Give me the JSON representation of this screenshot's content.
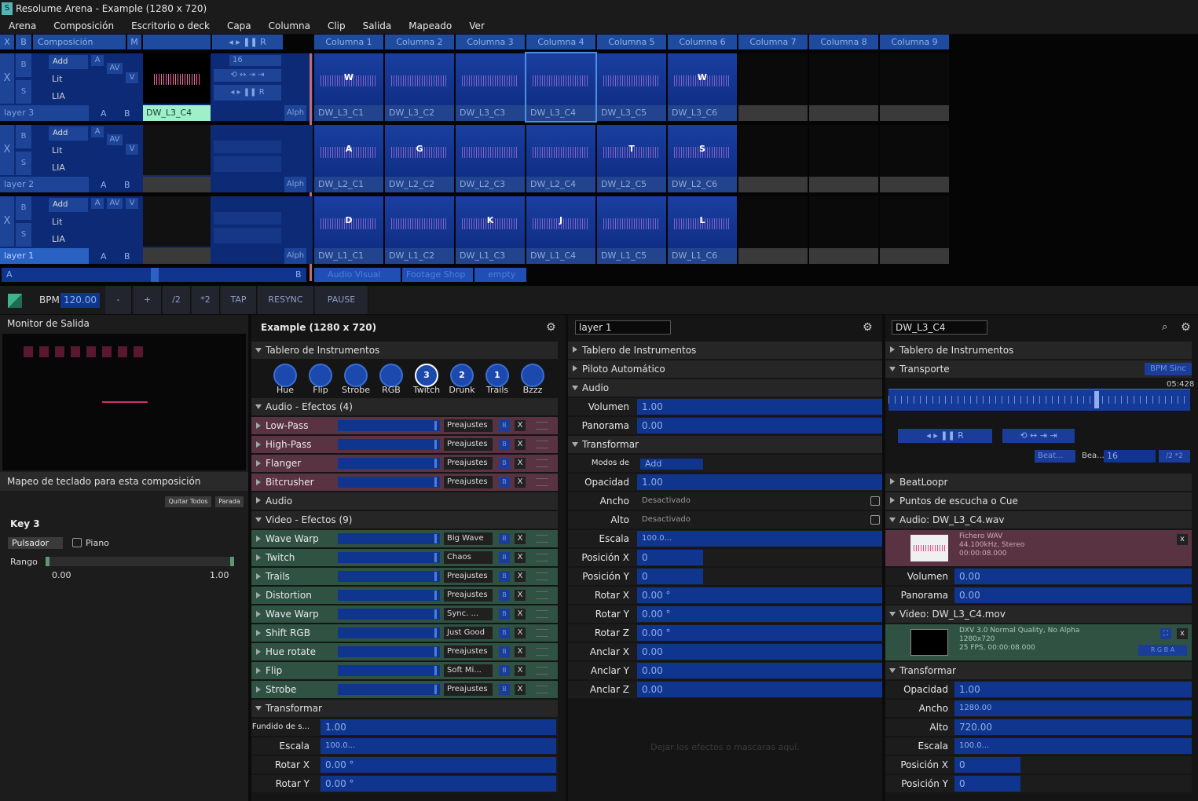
{
  "window_title": "Resolume Arena - Example (1280 x 720)",
  "menu": [
    "Arena",
    "Composición",
    "Escritorio o deck",
    "Capa",
    "Columna",
    "Clip",
    "Salida",
    "Mapeado",
    "Ver"
  ],
  "deck_header": {
    "x": "X",
    "b": "B",
    "composition": "Composición",
    "m": "M"
  },
  "columns": [
    "Columna 1",
    "Columna 2",
    "Columna 3",
    "Columna 4",
    "Columna 5",
    "Columna 6",
    "Columna 7",
    "Columna 8",
    "Columna 9"
  ],
  "layers": [
    {
      "name": "layer 3",
      "blend": "Add",
      "opt1": "Lit",
      "opt2": "LIA",
      "active_clip": "DW_L3_C4",
      "speed": "16",
      "clips": [
        "DW_L3_C1",
        "DW_L3_C2",
        "DW_L3_C3",
        "DW_L3_C4",
        "DW_L3_C5",
        "DW_L3_C6"
      ],
      "letters": [
        "W",
        "",
        "",
        "",
        "",
        "W"
      ]
    },
    {
      "name": "layer 2",
      "blend": "Add",
      "opt1": "Lit",
      "opt2": "LIA",
      "active_clip": "",
      "speed": "",
      "clips": [
        "DW_L2_C1",
        "DW_L2_C2",
        "DW_L2_C3",
        "DW_L2_C4",
        "DW_L2_C5",
        "DW_L2_C6"
      ],
      "letters": [
        "A",
        "G",
        "",
        "",
        "T",
        "S"
      ]
    },
    {
      "name": "layer 1",
      "blend": "Add",
      "opt1": "Lit",
      "opt2": "LIA",
      "active_clip": "",
      "speed": "",
      "clips": [
        "DW_L1_C1",
        "DW_L1_C2",
        "DW_L1_C3",
        "DW_L1_C4",
        "DW_L1_C5",
        "DW_L1_C6"
      ],
      "letters": [
        "D",
        "",
        "K",
        "J",
        "",
        "L"
      ]
    }
  ],
  "layer_labels": {
    "a": "A",
    "b": "B",
    "alph": "Alph",
    "av": "AV",
    "v": "V",
    "t": "T"
  },
  "crossfader": {
    "a": "A",
    "b": "B"
  },
  "deck_tabs": [
    "Audio Visual",
    "Footage Shop",
    "empty"
  ],
  "bpm": {
    "label": "BPM",
    "value": "120.00",
    "buttons": [
      "-",
      "+",
      "/2",
      "*2",
      "TAP",
      "RESYNC",
      "PAUSE"
    ]
  },
  "monitor": {
    "title": "Monitor de Salida",
    "keyboard_title": "Mapeo de teclado para esta composición",
    "clear_all": "Quitar Todos",
    "stop": "Parada",
    "key": "Key 3",
    "mode": "Pulsador",
    "piano": "Piano",
    "range_label": "Rango",
    "range_min": "0.00",
    "range_max": "1.00"
  },
  "composition": {
    "title": "Example (1280 x 720)",
    "dashboard": "Tablero de Instrumentos",
    "knobs": [
      {
        "label": "Hue",
        "num": ""
      },
      {
        "label": "Flip",
        "num": ""
      },
      {
        "label": "Strobe",
        "num": ""
      },
      {
        "label": "RGB",
        "num": ""
      },
      {
        "label": "Twitch",
        "num": "3"
      },
      {
        "label": "Drunk",
        "num": "2"
      },
      {
        "label": "Trails",
        "num": "1"
      },
      {
        "label": "Bzzz",
        "num": ""
      }
    ],
    "audio_fx_header": "Audio - Efectos (4)",
    "audio_fx": [
      {
        "name": "Low-Pass",
        "preset": "Preajustes"
      },
      {
        "name": "High-Pass",
        "preset": "Preajustes"
      },
      {
        "name": "Flanger",
        "preset": "Preajustes"
      },
      {
        "name": "Bitcrusher",
        "preset": "Preajustes"
      }
    ],
    "audio_section": "Audio",
    "video_fx_header": "Video - Efectos (9)",
    "video_fx": [
      {
        "name": "Wave Warp",
        "preset": "Big Wave"
      },
      {
        "name": "Twitch",
        "preset": "Chaos"
      },
      {
        "name": "Trails",
        "preset": "Preajustes"
      },
      {
        "name": "Distortion",
        "preset": "Preajustes"
      },
      {
        "name": "Wave Warp",
        "preset": "Sync. ..."
      },
      {
        "name": "Shift RGB",
        "preset": "Just Good"
      },
      {
        "name": "Hue rotate",
        "preset": "Preajustes"
      },
      {
        "name": "Flip",
        "preset": "Soft Mi..."
      },
      {
        "name": "Strobe",
        "preset": "Preajustes"
      }
    ],
    "transform_header": "Transformar",
    "transform": [
      {
        "label": "Fundido de s...",
        "value": "1.00"
      },
      {
        "label": "Escala",
        "value": "100.0..."
      },
      {
        "label": "Rotar X",
        "value": "0.00 °"
      },
      {
        "label": "Rotar Y",
        "value": "0.00 °"
      }
    ]
  },
  "layer_panel": {
    "name": "layer 1",
    "sections": [
      "Tablero de Instrumentos",
      "Piloto Automático",
      "Audio",
      "Transformar"
    ],
    "audio": [
      {
        "label": "Volumen",
        "value": "1.00"
      },
      {
        "label": "Panorama",
        "value": "0.00"
      }
    ],
    "blend_label": "Modos de Fusión",
    "blend_value": "Add",
    "transform": [
      {
        "label": "Opacidad",
        "value": "1.00"
      },
      {
        "label": "Ancho",
        "value": "Desactivado"
      },
      {
        "label": "Alto",
        "value": "Desactivado"
      },
      {
        "label": "Escala",
        "value": "100.0..."
      },
      {
        "label": "Posición X",
        "value": "0"
      },
      {
        "label": "Posición Y",
        "value": "0"
      },
      {
        "label": "Rotar X",
        "value": "0.00 °"
      },
      {
        "label": "Rotar Y",
        "value": "0.00 °"
      },
      {
        "label": "Rotar Z",
        "value": "0.00 °"
      },
      {
        "label": "Anclar X",
        "value": "0.00"
      },
      {
        "label": "Anclar Y",
        "value": "0.00"
      },
      {
        "label": "Anclar Z",
        "value": "0.00"
      }
    ],
    "drop_hint": "Dejar los efectos o mascaras aquí."
  },
  "clip_panel": {
    "name": "DW_L3_C4",
    "dashboard": "Tablero de Instrumentos",
    "transport": "Transporte",
    "bpm_sync": "BPM Sinc",
    "time": "05:428",
    "beat_label": "Beat...",
    "bea_label": "Bea...",
    "beats": "16",
    "beatloopr": "BeatLoopr",
    "cue": "Puntos de escucha o Cue",
    "audio_header": "Audio: DW_L3_C4.wav",
    "audio_info": [
      "Fichero WAV",
      "44.100kHz, Stereo",
      "00:00:08.000"
    ],
    "audio_params": [
      {
        "label": "Volumen",
        "value": "0.00"
      },
      {
        "label": "Panorama",
        "value": "0.00"
      }
    ],
    "video_header": "Video: DW_L3_C4.mov",
    "video_info": [
      "DXV 3.0 Normal Quality, No Alpha",
      "1280x720",
      "25 FPS, 00:00:08.000"
    ],
    "transform_header": "Transformar",
    "transform": [
      {
        "label": "Opacidad",
        "value": "1.00"
      },
      {
        "label": "Ancho",
        "value": "1280.00"
      },
      {
        "label": "Alto",
        "value": "720.00"
      },
      {
        "label": "Escala",
        "value": "100.0..."
      },
      {
        "label": "Posición X",
        "value": "0"
      },
      {
        "label": "Posición Y",
        "value": "0"
      }
    ]
  }
}
